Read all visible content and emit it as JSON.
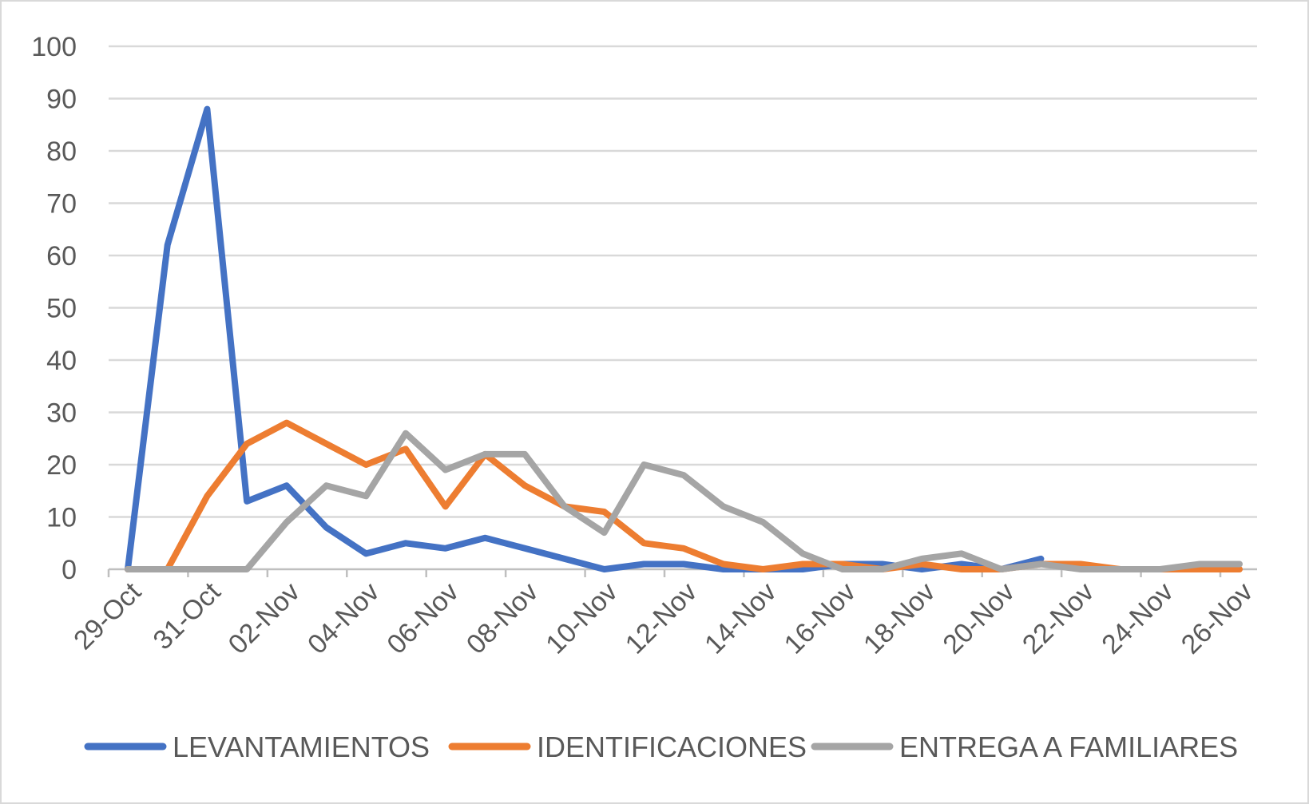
{
  "chart_data": {
    "type": "line",
    "title": "",
    "xlabel": "",
    "ylabel": "",
    "ylim": [
      0,
      100
    ],
    "y_ticks": [
      "0",
      "10",
      "20",
      "30",
      "40",
      "50",
      "60",
      "70",
      "80",
      "90",
      "100"
    ],
    "x": [
      "29-Oct",
      "30-Oct",
      "31-Oct",
      "01-Nov",
      "02-Nov",
      "03-Nov",
      "04-Nov",
      "05-Nov",
      "06-Nov",
      "07-Nov",
      "08-Nov",
      "09-Nov",
      "10-Nov",
      "11-Nov",
      "12-Nov",
      "13-Nov",
      "14-Nov",
      "15-Nov",
      "16-Nov",
      "17-Nov",
      "18-Nov",
      "19-Nov",
      "20-Nov",
      "21-Nov",
      "22-Nov",
      "23-Nov",
      "24-Nov",
      "25-Nov",
      "26-Nov"
    ],
    "x_tick_labels": [
      "29-Oct",
      "31-Oct",
      "02-Nov",
      "04-Nov",
      "06-Nov",
      "08-Nov",
      "10-Nov",
      "12-Nov",
      "14-Nov",
      "16-Nov",
      "18-Nov",
      "20-Nov",
      "22-Nov",
      "24-Nov",
      "26-Nov"
    ],
    "grid": true,
    "legend_position": "bottom",
    "series": [
      {
        "name": "LEVANTAMIENTOS",
        "color": "#4472c4",
        "values": [
          0,
          62,
          88,
          13,
          16,
          8,
          3,
          5,
          4,
          6,
          4,
          2,
          0,
          1,
          1,
          0,
          0,
          0,
          1,
          1,
          0,
          1,
          0,
          2,
          null,
          null,
          null,
          null,
          null
        ]
      },
      {
        "name": "IDENTIFICACIONES",
        "color": "#ed7d31",
        "values": [
          0,
          0,
          14,
          24,
          28,
          24,
          20,
          23,
          12,
          22,
          16,
          12,
          11,
          5,
          4,
          1,
          0,
          1,
          1,
          0,
          1,
          0,
          0,
          1,
          1,
          0,
          0,
          0,
          0
        ]
      },
      {
        "name": "ENTREGA A FAMILIARES",
        "color": "#a5a5a5",
        "values": [
          0,
          0,
          0,
          0,
          9,
          16,
          14,
          26,
          19,
          22,
          22,
          12,
          7,
          20,
          18,
          12,
          9,
          3,
          0,
          0,
          2,
          3,
          0,
          1,
          0,
          0,
          0,
          1,
          1
        ]
      }
    ]
  }
}
